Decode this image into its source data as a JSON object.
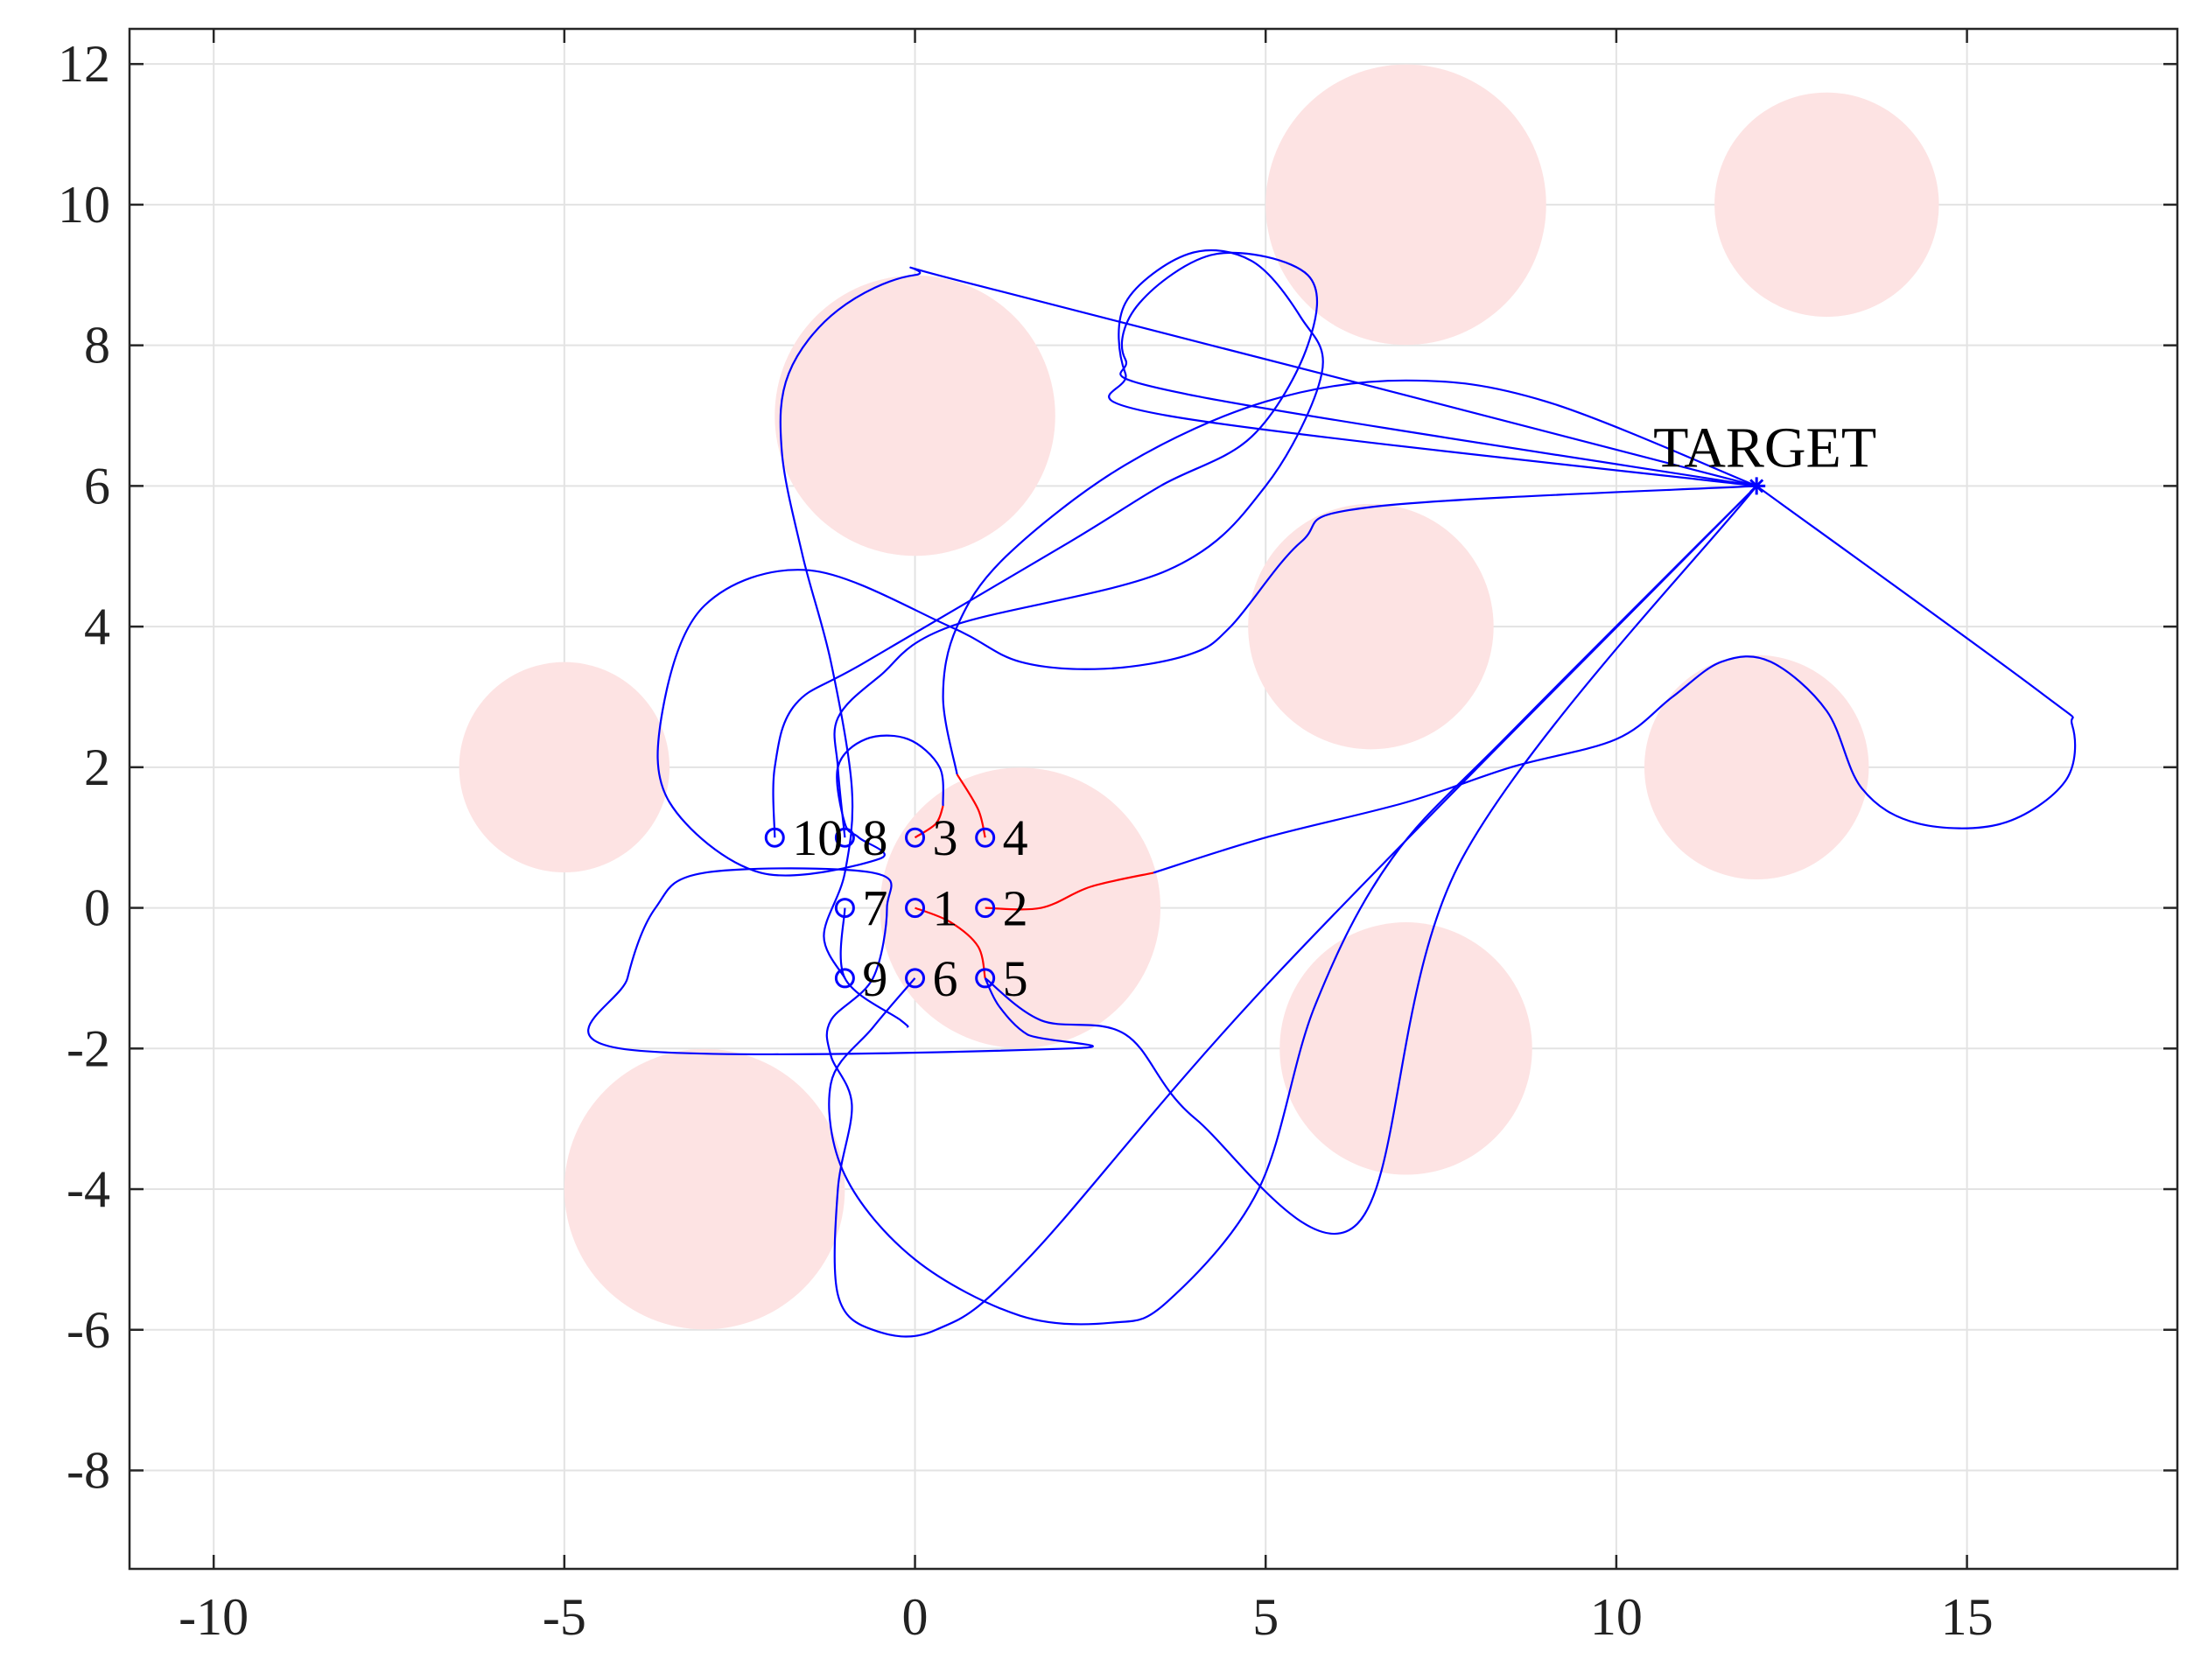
{
  "chart_data": {
    "type": "scatter",
    "title": "",
    "xlabel": "",
    "ylabel": "",
    "xlim": [
      -11.2,
      18
    ],
    "ylim": [
      -9.4,
      12.5
    ],
    "xticks": [
      -10,
      -5,
      0,
      5,
      10,
      15
    ],
    "yticks": [
      -8,
      -6,
      -4,
      -2,
      0,
      2,
      4,
      6,
      8,
      10,
      12
    ],
    "grid": true,
    "colors": {
      "obstacle": "#fde3e3",
      "trajectory": "#0000ff",
      "initial_segment": "#ff0000",
      "grid": "#e3e3e3",
      "axis": "#262626"
    },
    "obstacles": [
      {
        "cx": 0,
        "cy": 7,
        "r": 2
      },
      {
        "cx": 7,
        "cy": 10,
        "r": 2
      },
      {
        "cx": 13,
        "cy": 10,
        "r": 1.6
      },
      {
        "cx": 6.5,
        "cy": 4,
        "r": 1.75
      },
      {
        "cx": -5,
        "cy": 2,
        "r": 1.5
      },
      {
        "cx": 1.5,
        "cy": 0,
        "r": 2
      },
      {
        "cx": 12,
        "cy": 2,
        "r": 1.6
      },
      {
        "cx": 7,
        "cy": -2,
        "r": 1.8
      },
      {
        "cx": -3,
        "cy": -4,
        "r": 2
      }
    ],
    "target": {
      "label": "TARGET",
      "x": 12,
      "y": 6
    },
    "agents": [
      {
        "label": "1",
        "x": 0,
        "y": 0
      },
      {
        "label": "2",
        "x": 1,
        "y": 0
      },
      {
        "label": "3",
        "x": 0,
        "y": 1
      },
      {
        "label": "4",
        "x": 1,
        "y": 1
      },
      {
        "label": "5",
        "x": 1,
        "y": -1
      },
      {
        "label": "6",
        "x": 0,
        "y": -1
      },
      {
        "label": "7",
        "x": -1,
        "y": 0
      },
      {
        "label": "8",
        "x": -1,
        "y": 1
      },
      {
        "label": "9",
        "x": -1,
        "y": -1
      },
      {
        "label": "10",
        "x": -2,
        "y": 1
      }
    ],
    "paths": [
      {
        "agent": "1",
        "initial": [
          [
            0,
            0
          ],
          [
            0.5,
            -0.2
          ],
          [
            0.9,
            -0.55
          ],
          [
            1,
            -1
          ]
        ],
        "points": [
          [
            1,
            -1
          ],
          [
            1.2,
            -1.4
          ],
          [
            1.6,
            -1.8
          ],
          [
            2.2,
            -2
          ],
          [
            -4.2,
            -2
          ],
          [
            -4.1,
            -1
          ],
          [
            -3.7,
            0
          ],
          [
            -3,
            0.5
          ],
          [
            -0.6,
            0.5
          ],
          [
            -0.4,
            0
          ],
          [
            -0.6,
            -1
          ],
          [
            -1.2,
            -1.6
          ],
          [
            -1.2,
            -2.1
          ],
          [
            -0.9,
            -2.8
          ],
          [
            -1.1,
            -4
          ],
          [
            -1.1,
            -5.5
          ],
          [
            -0.6,
            -6
          ],
          [
            0.3,
            -6
          ],
          [
            1.6,
            -5
          ],
          [
            5.2,
            -0.9
          ],
          [
            12,
            6
          ]
        ]
      },
      {
        "agent": "2",
        "initial": [
          [
            1,
            0
          ],
          [
            1.8,
            0
          ],
          [
            2.5,
            0.3
          ],
          [
            3.4,
            0.5
          ]
        ],
        "points": [
          [
            3.4,
            0.5
          ],
          [
            5,
            1
          ],
          [
            7,
            1.5
          ],
          [
            8.5,
            2
          ],
          [
            10,
            2.4
          ],
          [
            10.8,
            3
          ],
          [
            11.5,
            3.5
          ],
          [
            12.2,
            3.5
          ],
          [
            13,
            2.8
          ],
          [
            13.5,
            1.7
          ],
          [
            14.3,
            1.2
          ],
          [
            15.5,
            1.2
          ],
          [
            16.4,
            1.8
          ],
          [
            16.5,
            2.6
          ],
          [
            16,
            3.1
          ],
          [
            12,
            6
          ]
        ]
      },
      {
        "agent": "3",
        "initial": [
          [
            0,
            1
          ],
          [
            0.3,
            1.2
          ],
          [
            0.4,
            1.45
          ]
        ],
        "points": [
          [
            0.4,
            1.45
          ],
          [
            0.35,
            2
          ],
          [
            -0.1,
            2.4
          ],
          [
            -0.7,
            2.4
          ],
          [
            -1.1,
            2
          ],
          [
            -1,
            1.2
          ],
          [
            -0.8,
            1
          ],
          [
            -0.5,
            0.7
          ],
          [
            -2.2,
            0.5
          ],
          [
            -3.5,
            1.5
          ],
          [
            -3.6,
            2.8
          ],
          [
            -3,
            4.3
          ],
          [
            -1.5,
            4.8
          ],
          [
            0.5,
            4
          ],
          [
            1.5,
            3.5
          ],
          [
            2.7,
            3.4
          ],
          [
            3.9,
            3.6
          ],
          [
            4.5,
            4
          ],
          [
            5.5,
            5.2
          ],
          [
            6.5,
            5.7
          ],
          [
            12,
            6
          ]
        ]
      },
      {
        "agent": "4",
        "initial": [
          [
            1,
            1
          ],
          [
            0.9,
            1.4
          ],
          [
            0.6,
            1.9
          ]
        ],
        "points": [
          [
            0.6,
            1.9
          ],
          [
            0.4,
            3
          ],
          [
            0.6,
            4
          ],
          [
            1.3,
            5
          ],
          [
            3,
            6.3
          ],
          [
            5,
            7.2
          ],
          [
            7,
            7.5
          ],
          [
            9,
            7.2
          ],
          [
            12,
            6
          ]
        ]
      },
      {
        "agent": "5",
        "initial": [
          [
            1,
            -1
          ]
        ],
        "points": [
          [
            1,
            -1
          ],
          [
            1.8,
            -1.6
          ],
          [
            3,
            -1.8
          ],
          [
            4,
            -3
          ],
          [
            6.3,
            -4.5
          ],
          [
            7.8,
            0.7
          ],
          [
            12,
            6
          ]
        ]
      },
      {
        "agent": "6",
        "initial": [
          [
            0,
            -1
          ]
        ],
        "points": [
          [
            0,
            -1
          ],
          [
            -0.6,
            -1.7
          ],
          [
            -1.2,
            -2.5
          ],
          [
            -1,
            -3.8
          ],
          [
            0,
            -5
          ],
          [
            1.5,
            -5.8
          ],
          [
            2.8,
            -5.9
          ],
          [
            3.6,
            -5.6
          ],
          [
            4.9,
            -4
          ],
          [
            5.7,
            -1.4
          ],
          [
            6.8,
            0.7
          ],
          [
            8.5,
            2.5
          ],
          [
            12,
            6
          ]
        ]
      },
      {
        "agent": "7",
        "initial": [
          [
            -1,
            0
          ]
        ],
        "points": [
          [
            -1,
            0
          ],
          [
            -1,
            -1
          ],
          [
            -0.2,
            -1.6
          ],
          [
            -0.1,
            -1.7
          ]
        ]
      },
      {
        "agent": "8",
        "initial": [
          [
            -1,
            1
          ]
        ],
        "points": [
          [
            -1,
            1
          ],
          [
            -1.1,
            2
          ],
          [
            -1.1,
            2.7
          ],
          [
            -0.5,
            3.3
          ],
          [
            0.5,
            4
          ],
          [
            3.6,
            4.8
          ],
          [
            5,
            6
          ],
          [
            5.8,
            7.6
          ],
          [
            5.5,
            8.4
          ],
          [
            4.8,
            9.2
          ],
          [
            3.9,
            9.3
          ],
          [
            3,
            8.6
          ],
          [
            3,
            7.6
          ],
          [
            3.6,
            7
          ],
          [
            12,
            6
          ]
        ]
      },
      {
        "agent": "9",
        "initial": [
          [
            -1,
            -1
          ]
        ],
        "points": [
          [
            -1,
            -1
          ],
          [
            -1.3,
            -0.4
          ],
          [
            -1,
            0.5
          ],
          [
            -0.9,
            1.7
          ],
          [
            -1.2,
            3.5
          ],
          [
            -1.6,
            5
          ],
          [
            -1.9,
            6.5
          ],
          [
            -1.8,
            7.6
          ],
          [
            -1.1,
            8.5
          ],
          [
            0,
            9
          ],
          [
            1.1,
            8.8
          ],
          [
            12,
            6
          ]
        ]
      },
      {
        "agent": "10",
        "initial": [
          [
            -2,
            1
          ]
        ],
        "points": [
          [
            -2,
            1
          ],
          [
            -2,
            2
          ],
          [
            -1.7,
            2.9
          ],
          [
            -0.7,
            3.5
          ],
          [
            2.2,
            5.2
          ],
          [
            3.5,
            6
          ],
          [
            4.8,
            6.7
          ],
          [
            5.6,
            8
          ],
          [
            5.6,
            9
          ],
          [
            4.3,
            9.3
          ],
          [
            3.2,
            8.6
          ],
          [
            3,
            7.8
          ],
          [
            3.9,
            7.3
          ],
          [
            12,
            6
          ]
        ]
      }
    ]
  }
}
